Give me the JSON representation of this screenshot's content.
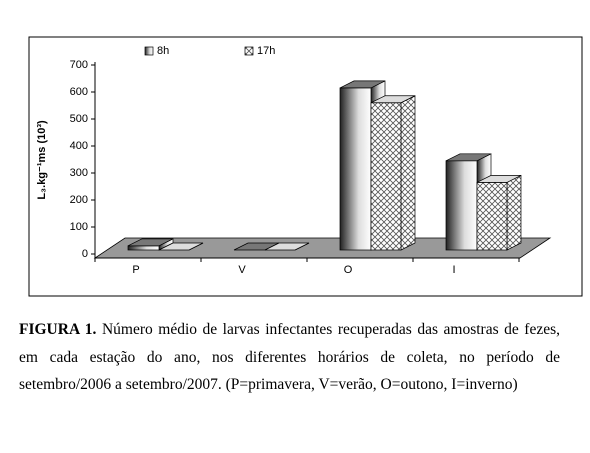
{
  "chart_data": {
    "type": "bar3d",
    "y_label": "L₃.kg⁻¹ms (10³)",
    "categories": [
      "P",
      "V",
      "O",
      "I"
    ],
    "series": [
      {
        "name": "8h",
        "color": "#555555",
        "values": [
          45,
          5,
          630,
          360
        ]
      },
      {
        "name": "17h",
        "color": "#bbbbbb",
        "values": [
          15,
          3,
          575,
          280
        ]
      }
    ],
    "ylim": [
      0,
      700
    ],
    "yticks": [
      0,
      100,
      200,
      300,
      400,
      500,
      600,
      700
    ],
    "legend": "top"
  },
  "caption": {
    "label": "FIGURA 1.",
    "text": "Número médio de larvas infectantes recuperadas das amostras de fezes, em cada estação do ano, nos diferentes horários de coleta, no período de setembro/2006 a setembro/2007.  (P=primavera, V=verão, O=outono, I=inverno)"
  }
}
